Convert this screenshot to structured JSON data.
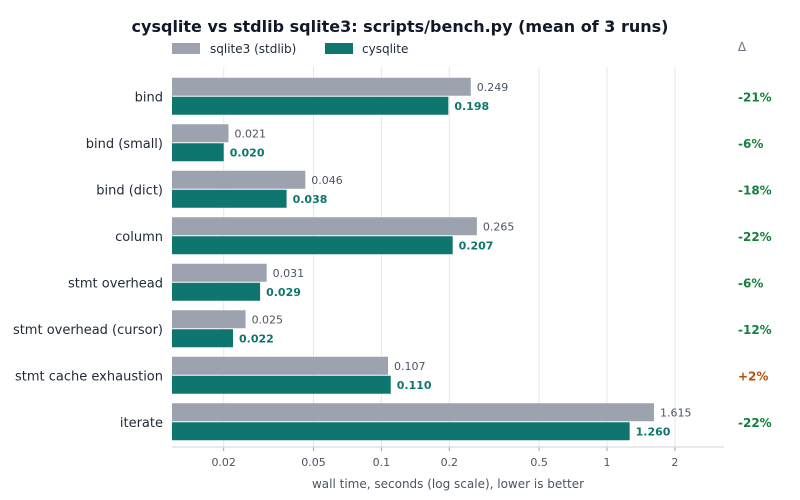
{
  "chart_data": {
    "type": "bar",
    "orientation": "horizontal",
    "title": "cysqlite vs stdlib sqlite3: scripts/bench.py (mean of 3 runs)",
    "xlabel": "wall time, seconds (log scale), lower is better",
    "ylabel": "",
    "xscale": "log",
    "xlim": [
      0.0118,
      3.3
    ],
    "grid": "vertical",
    "legend_placement": "top-left",
    "categories": [
      "bind",
      "bind (small)",
      "bind (dict)",
      "column",
      "stmt overhead",
      "stmt overhead (cursor)",
      "stmt cache exhaustion",
      "iterate"
    ],
    "series": [
      {
        "name": "sqlite3 (stdlib)",
        "color": "#9ca3af",
        "values": [
          0.249,
          0.021,
          0.046,
          0.265,
          0.031,
          0.025,
          0.107,
          1.615
        ],
        "labels": [
          "0.249",
          "0.021",
          "0.046",
          "0.265",
          "0.031",
          "0.025",
          "0.107",
          "1.615"
        ]
      },
      {
        "name": "cysqlite",
        "color": "#0e766e",
        "values": [
          0.198,
          0.02,
          0.038,
          0.207,
          0.029,
          0.022,
          0.11,
          1.26
        ],
        "labels": [
          "0.198",
          "0.020",
          "0.038",
          "0.207",
          "0.029",
          "0.022",
          "0.110",
          "1.260"
        ]
      }
    ],
    "ticks": [
      0.02,
      0.05,
      0.1,
      0.2,
      0.5,
      1,
      2
    ],
    "tick_labels": [
      "0.02",
      "0.05",
      "0.1",
      "0.2",
      "0.5",
      "1",
      "2"
    ],
    "delta_header": "Δ",
    "deltas": [
      "-21%",
      "-6%",
      "-18%",
      "-22%",
      "-6%",
      "-12%",
      "+2%",
      "-22%"
    ],
    "delta_colors": {
      "negative": "#15803d",
      "positive": "#b45309"
    }
  }
}
